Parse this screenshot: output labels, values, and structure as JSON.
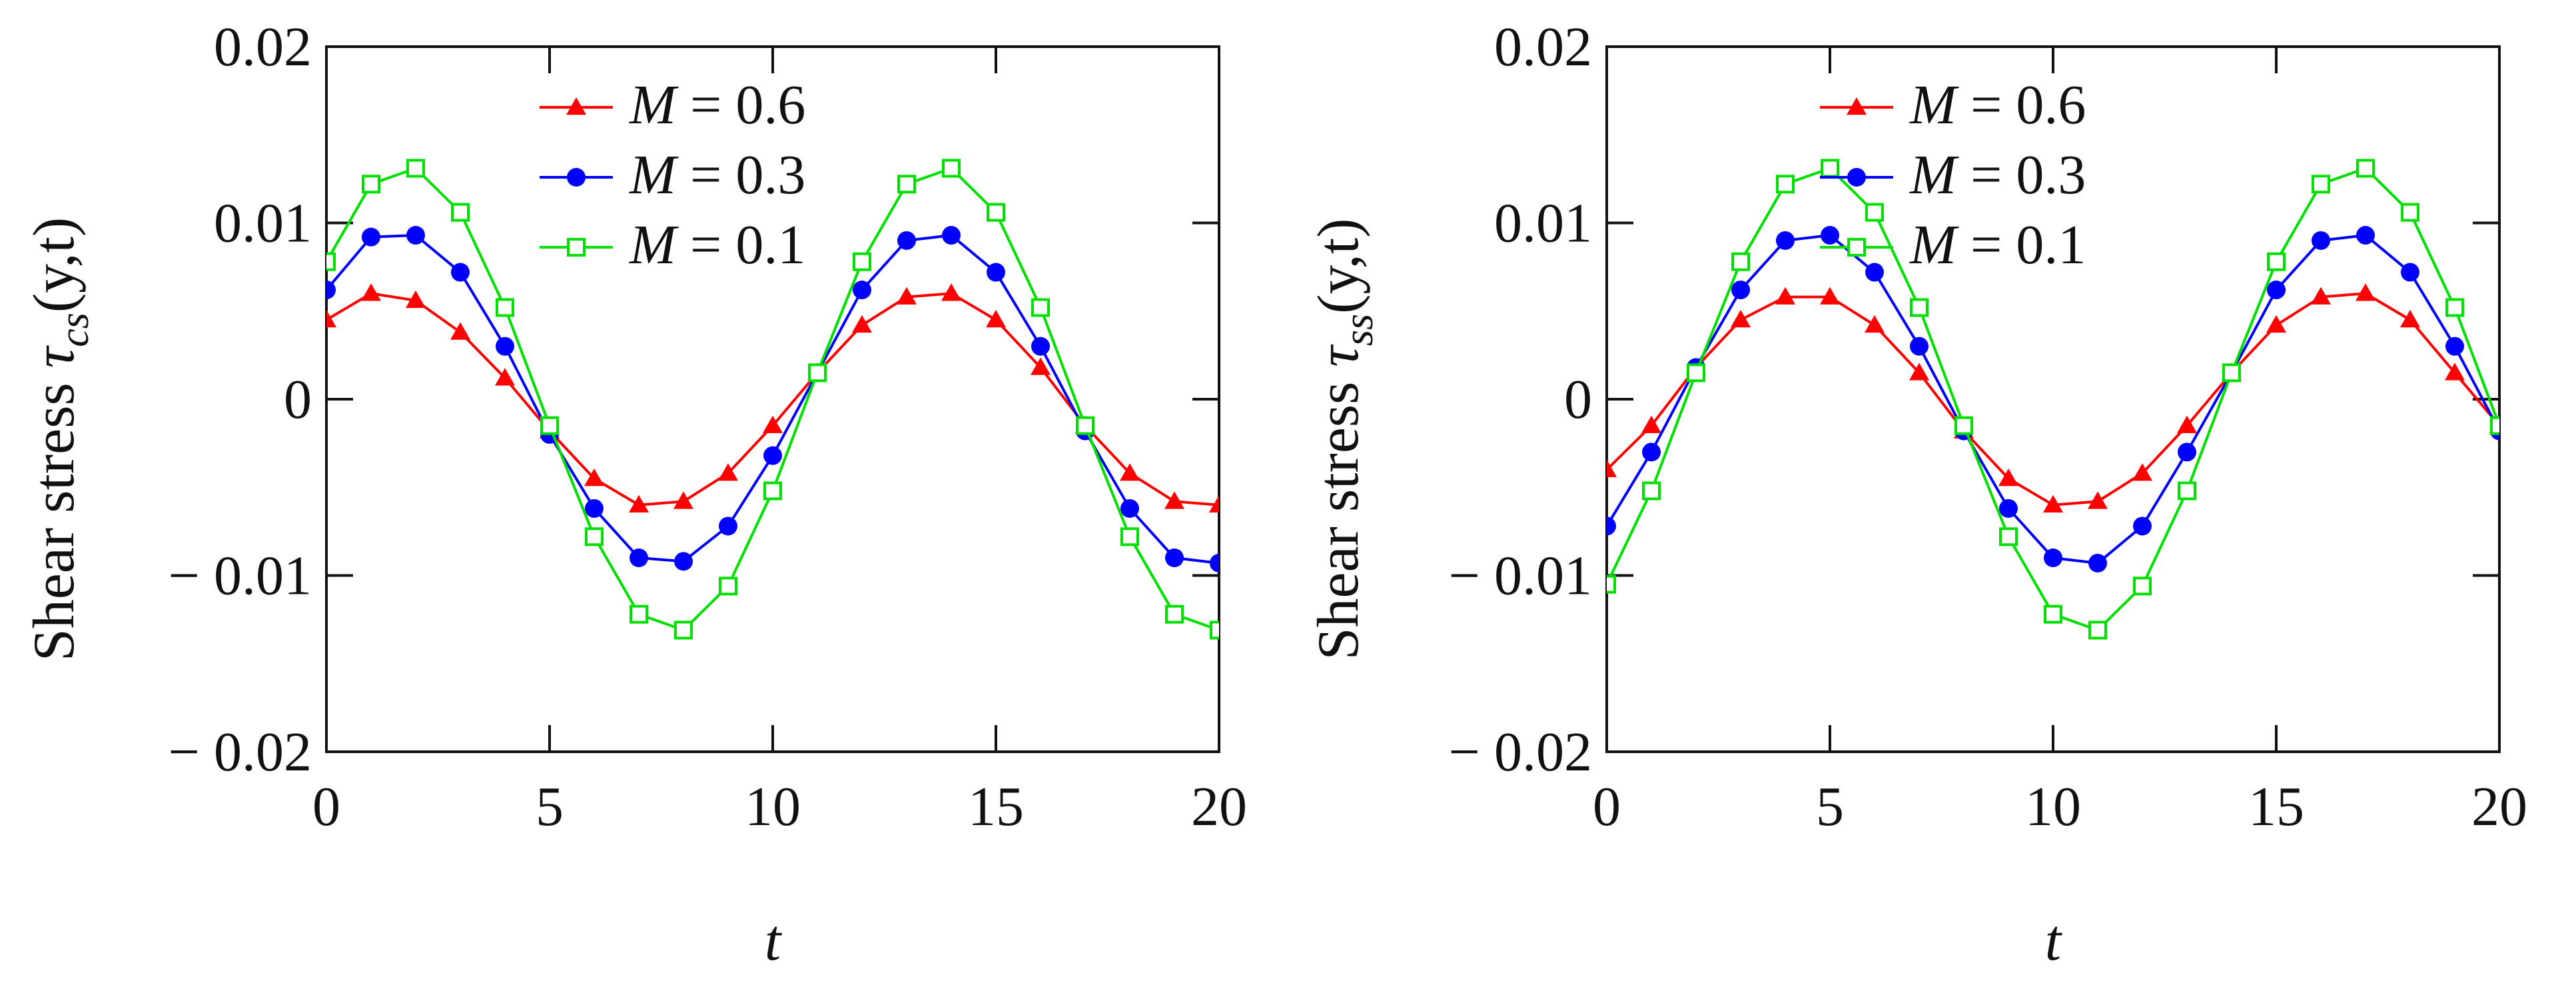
{
  "chart_data": [
    {
      "type": "line",
      "title": "",
      "xlabel": "t",
      "ylabel": {
        "text": "Shear stress ",
        "symbol": "τ",
        "subscript": "cs",
        "args": "(y,t)"
      },
      "xlim": [
        0,
        20
      ],
      "ylim": [
        -0.02,
        0.02
      ],
      "xticks": [
        0,
        5,
        10,
        15,
        20
      ],
      "xtick_labels": [
        "0",
        "5",
        "10",
        "15",
        "20"
      ],
      "yticks": [
        0.02,
        0.01,
        0,
        -0.01,
        -0.02
      ],
      "ytick_labels": [
        "0.02",
        "0.01",
        "0",
        "− 0.01",
        "− 0.02"
      ],
      "grid": false,
      "legend_position": "top-center",
      "x": [
        0,
        1,
        2,
        3,
        4,
        5,
        6,
        7,
        8,
        9,
        10,
        11,
        12,
        13,
        14,
        15,
        16,
        17,
        18,
        19,
        20
      ],
      "series": [
        {
          "label": "M = 0.6",
          "M_symbol": "M",
          "M_value": " = 0.6",
          "color": "#ff0000",
          "marker": "triangle",
          "values": [
            0.0045,
            0.006,
            0.0056,
            0.0038,
            0.0012,
            -0.0018,
            -0.0045,
            -0.006,
            -0.0058,
            -0.0042,
            -0.0015,
            0.0015,
            0.0042,
            0.0058,
            0.006,
            0.0045,
            0.0018,
            -0.0015,
            -0.0042,
            -0.0058,
            -0.006
          ]
        },
        {
          "label": "M = 0.3",
          "M_symbol": "M",
          "M_value": " = 0.3",
          "color": "#0000ff",
          "marker": "circle",
          "values": [
            0.0062,
            0.0092,
            0.0093,
            0.0072,
            0.003,
            -0.002,
            -0.0062,
            -0.009,
            -0.0092,
            -0.0072,
            -0.0032,
            0.0015,
            0.0062,
            0.009,
            0.0093,
            0.0072,
            0.003,
            -0.0018,
            -0.0062,
            -0.009,
            -0.0093
          ]
        },
        {
          "label": "M = 0.1",
          "M_symbol": "M",
          "M_value": " = 0.1",
          "color": "#00e000",
          "marker": "square-open",
          "values": [
            0.0078,
            0.0122,
            0.0131,
            0.0106,
            0.0052,
            -0.0015,
            -0.0078,
            -0.0122,
            -0.0131,
            -0.0106,
            -0.0052,
            0.0015,
            0.0078,
            0.0122,
            0.0131,
            0.0106,
            0.0052,
            -0.0015,
            -0.0078,
            -0.0122,
            -0.0131
          ]
        }
      ]
    },
    {
      "type": "line",
      "title": "",
      "xlabel": "t",
      "ylabel": {
        "text": "Shear stress ",
        "symbol": "τ",
        "subscript": "ss",
        "args": "(y,t)"
      },
      "xlim": [
        0,
        20
      ],
      "ylim": [
        -0.02,
        0.02
      ],
      "xticks": [
        0,
        5,
        10,
        15,
        20
      ],
      "xtick_labels": [
        "0",
        "5",
        "10",
        "15",
        "20"
      ],
      "yticks": [
        0.02,
        0.01,
        0,
        -0.01,
        -0.02
      ],
      "ytick_labels": [
        "0.02",
        "0.01",
        "0",
        "− 0.01",
        "− 0.02"
      ],
      "grid": false,
      "legend_position": "top-center",
      "x": [
        0,
        1,
        2,
        3,
        4,
        5,
        6,
        7,
        8,
        9,
        10,
        11,
        12,
        13,
        14,
        15,
        16,
        17,
        18,
        19,
        20
      ],
      "series": [
        {
          "label": "M = 0.6",
          "M_symbol": "M",
          "M_value": " = 0.6",
          "color": "#ff0000",
          "marker": "triangle",
          "values": [
            -0.004,
            -0.0015,
            0.0018,
            0.0045,
            0.0058,
            0.0058,
            0.0042,
            0.0015,
            -0.0018,
            -0.0045,
            -0.006,
            -0.0058,
            -0.0042,
            -0.0015,
            0.0015,
            0.0042,
            0.0058,
            0.006,
            0.0045,
            0.0015,
            -0.0015
          ]
        },
        {
          "label": "M = 0.3",
          "M_symbol": "M",
          "M_value": " = 0.3",
          "color": "#0000ff",
          "marker": "circle",
          "values": [
            -0.0072,
            -0.003,
            0.0018,
            0.0062,
            0.009,
            0.0093,
            0.0072,
            0.003,
            -0.0018,
            -0.0062,
            -0.009,
            -0.0093,
            -0.0072,
            -0.003,
            0.0015,
            0.0062,
            0.009,
            0.0093,
            0.0072,
            0.003,
            -0.0018
          ]
        },
        {
          "label": "M = 0.1",
          "M_symbol": "M",
          "M_value": " = 0.1",
          "color": "#00e000",
          "marker": "square-open",
          "values": [
            -0.0105,
            -0.0052,
            0.0015,
            0.0078,
            0.0122,
            0.0131,
            0.0106,
            0.0052,
            -0.0015,
            -0.0078,
            -0.0122,
            -0.0131,
            -0.0106,
            -0.0052,
            0.0015,
            0.0078,
            0.0122,
            0.0131,
            0.0106,
            0.0052,
            -0.0015
          ]
        }
      ]
    }
  ]
}
